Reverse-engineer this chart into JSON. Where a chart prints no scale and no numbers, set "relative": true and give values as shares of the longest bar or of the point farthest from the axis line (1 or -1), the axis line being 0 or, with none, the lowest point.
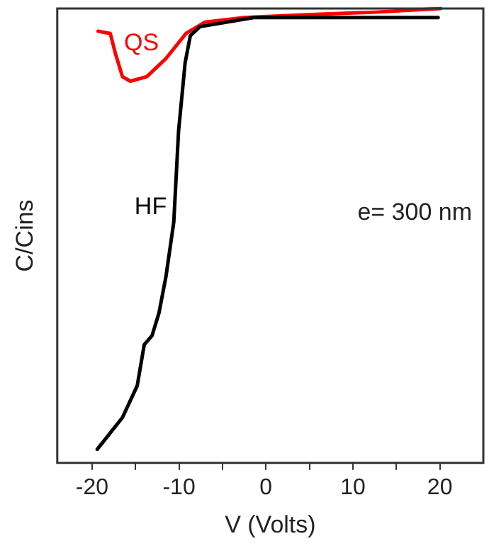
{
  "chart_data": {
    "type": "line",
    "xlabel": "V (Volts)",
    "ylabel": "C/Cins",
    "relative": true,
    "xlim": [
      -24,
      25
    ],
    "xticks": [
      -20,
      {
        "value": -15,
        "label": null
      },
      -10,
      {
        "value": -5,
        "label": null
      },
      0,
      {
        "value": 5,
        "label": null
      },
      10,
      {
        "value": 15,
        "label": null
      },
      20
    ],
    "grid": false,
    "legend": false,
    "marker": "none",
    "line_style": "solid",
    "annotations": [
      "e= 300 nm"
    ],
    "series": [
      {
        "name": "HF",
        "color": "#000000",
        "x": [
          -19.4,
          -16.5,
          -14.8,
          -14.0,
          -13.1,
          -12.3,
          -11.5,
          -10.6,
          -10.05,
          -9.3,
          -8.7,
          -7.6,
          -1.4,
          9.8,
          19.8
        ],
        "values": [
          0.03,
          0.1,
          0.17,
          0.26,
          0.28,
          0.33,
          0.41,
          0.53,
          0.73,
          0.88,
          0.94,
          0.96,
          0.98,
          0.98,
          0.98
        ]
      },
      {
        "name": "QS",
        "color": "#ff0000",
        "x": [
          -19.3,
          -17.9,
          -17.3,
          -16.5,
          -15.6,
          -13.7,
          -11.5,
          -9.2,
          -7.0,
          -2.5,
          4.2,
          12.6,
          20.1
        ],
        "values": [
          0.95,
          0.945,
          0.9,
          0.85,
          0.84,
          0.85,
          0.89,
          0.945,
          0.97,
          0.98,
          0.986,
          0.992,
          1
        ]
      }
    ]
  }
}
